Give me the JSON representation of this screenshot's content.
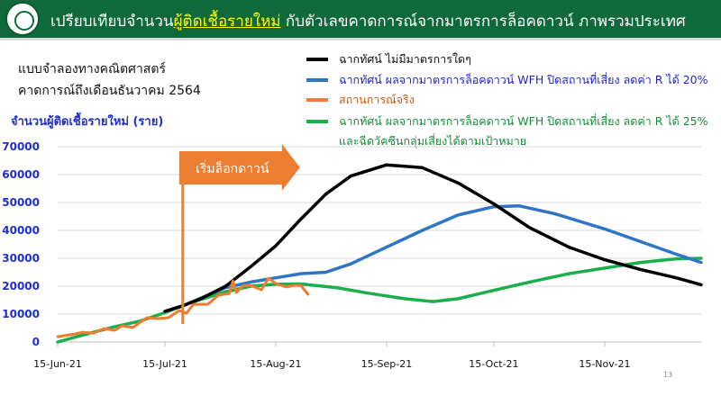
{
  "header": {
    "title_before": "เปรียบเทียบจำนวน",
    "title_highlight": "ผู้ติดเชื้อรายใหม่",
    "title_after": " กับตัวเลขคาดการณ์จากมาตรการล็อคดาวน์ ภาพรวมประเทศ",
    "bg_color": "#10693a",
    "highlight_color": "#ffff00"
  },
  "notes": {
    "line1": "แบบจำลองทางคณิตศาสตร์",
    "line2": "คาดการณ์ถึงเดือนธันวาคม 2564"
  },
  "page_number": "13",
  "chart_data": {
    "type": "line",
    "ylabel": "จำนวนผู้ติดเชื้อรายใหม่ (ราย)",
    "ylim": [
      0,
      70000
    ],
    "yticks": [
      "0",
      "10000",
      "20000",
      "30000",
      "40000",
      "50000",
      "60000",
      "70000"
    ],
    "xlim": [
      "2021-06-15",
      "2021-12-12"
    ],
    "xticks": [
      {
        "date": "2021-06-15",
        "label": "15-Jun-21"
      },
      {
        "date": "2021-07-15",
        "label": "15-Jul-21"
      },
      {
        "date": "2021-08-15",
        "label": "15-Aug-21"
      },
      {
        "date": "2021-09-15",
        "label": "15-Sep-21"
      },
      {
        "date": "2021-10-15",
        "label": "15-Oct-21"
      },
      {
        "date": "2021-11-15",
        "label": "15-Nov-21"
      }
    ],
    "grid": true,
    "legend_position": "top-right",
    "annotation": {
      "label": "เริ่มล็อกดาวน์",
      "date": "2021-07-20",
      "color": "#ed7d31"
    },
    "series": [
      {
        "name": "ฉากทัศน์ ไม่มีมาตรการใดๆ",
        "color": "#000000",
        "text_color": "#111111",
        "legend_line2": "",
        "x": [
          "2021-07-15",
          "2021-07-20",
          "2021-07-25",
          "2021-08-01",
          "2021-08-08",
          "2021-08-15",
          "2021-08-22",
          "2021-08-29",
          "2021-09-05",
          "2021-09-15",
          "2021-09-25",
          "2021-10-05",
          "2021-10-15",
          "2021-10-25",
          "2021-11-05",
          "2021-11-15",
          "2021-11-25",
          "2021-12-05",
          "2021-12-12"
        ],
        "y": [
          11000,
          13000,
          15500,
          20000,
          27000,
          34500,
          44000,
          53000,
          59500,
          63500,
          62500,
          57000,
          49500,
          41000,
          34000,
          29500,
          26000,
          23000,
          20500
        ]
      },
      {
        "name": "ฉากทัศน์ ผลจากมาตรการล็อคดาวน์ WFH ปิดสถานที่เสี่ยง ลดค่า R ได้ 20%",
        "color": "#2e75c6",
        "text_color": "#1f1fd0",
        "legend_line2": "",
        "x": [
          "2021-07-20",
          "2021-08-01",
          "2021-08-08",
          "2021-08-15",
          "2021-08-22",
          "2021-08-29",
          "2021-09-05",
          "2021-09-15",
          "2021-09-25",
          "2021-10-05",
          "2021-10-15",
          "2021-10-22",
          "2021-11-01",
          "2021-11-15",
          "2021-11-25",
          "2021-12-05",
          "2021-12-12"
        ],
        "y": [
          13000,
          19500,
          21500,
          23000,
          24500,
          25000,
          28000,
          34000,
          40000,
          45500,
          48500,
          48800,
          46000,
          40500,
          36000,
          31500,
          28500
        ]
      },
      {
        "name": "สถานการณ์จริง",
        "color": "#ed7d31",
        "text_color": "#c55a11",
        "legend_line2": "",
        "x": [
          "2021-06-15",
          "2021-06-20",
          "2021-06-22",
          "2021-06-25",
          "2021-06-28",
          "2021-07-01",
          "2021-07-03",
          "2021-07-06",
          "2021-07-10",
          "2021-07-13",
          "2021-07-16",
          "2021-07-19",
          "2021-07-21",
          "2021-07-23",
          "2021-07-27",
          "2021-07-30",
          "2021-08-02",
          "2021-08-03",
          "2021-08-04",
          "2021-08-06",
          "2021-08-08",
          "2021-08-11",
          "2021-08-13",
          "2021-08-15",
          "2021-08-18",
          "2021-08-20",
          "2021-08-22",
          "2021-08-24"
        ],
        "y": [
          1900,
          2900,
          3500,
          3200,
          4800,
          4200,
          5800,
          5200,
          8700,
          8400,
          8700,
          11300,
          10300,
          13500,
          13500,
          16800,
          17400,
          21900,
          17700,
          20300,
          20300,
          18700,
          22900,
          21000,
          19700,
          20300,
          20300,
          17100
        ]
      },
      {
        "name": "ฉากทัศน์ ผลจากมาตรการล็อคดาวน์ WFH ปิดสถานที่เสี่ยง ลดค่า R ได้ 25%",
        "color": "#1aaf4b",
        "text_color": "#178a3a",
        "legend_line2": "และฉีดวัคซีนกลุ่มเสี่ยงได้ตามเป้าหมาย",
        "x": [
          "2021-06-15",
          "2021-06-22",
          "2021-07-01",
          "2021-07-08",
          "2021-07-15",
          "2021-07-22",
          "2021-08-01",
          "2021-08-08",
          "2021-08-15",
          "2021-08-22",
          "2021-09-01",
          "2021-09-10",
          "2021-09-20",
          "2021-09-28",
          "2021-10-05",
          "2021-10-15",
          "2021-10-25",
          "2021-11-05",
          "2021-11-15",
          "2021-11-25",
          "2021-12-05",
          "2021-12-12"
        ],
        "y": [
          0,
          2500,
          5500,
          7500,
          10500,
          14000,
          18000,
          20000,
          20700,
          20800,
          19500,
          17500,
          15500,
          14500,
          15500,
          18500,
          21500,
          24500,
          26500,
          28500,
          29800,
          30000
        ]
      }
    ]
  }
}
